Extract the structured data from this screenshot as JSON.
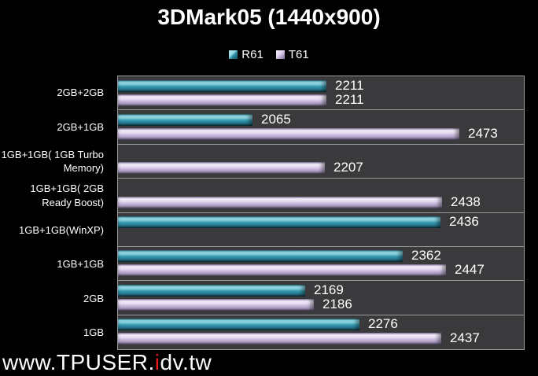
{
  "title": "3DMark05 (1440x900)",
  "watermark": {
    "prefix": "www.TPUSER.",
    "red_letter": "i",
    "suffix": "dv.tw"
  },
  "colors": {
    "background": "#000000",
    "plot_background": "#3a3a3c",
    "separator": "#9b9b9b",
    "r61_bar": "#2E8FA8",
    "t61_bar": "#C9B8DE",
    "text": "#ffffff",
    "watermark_accent": "#e51b1b"
  },
  "chart_data": {
    "type": "bar",
    "orientation": "horizontal",
    "title": "3DMark05 (1440x900)",
    "categories": [
      "2GB+2GB",
      "2GB+1GB",
      "1GB+1GB( 1GB Turbo Memory)",
      "1GB+1GB( 2GB Ready Boost)",
      "1GB+1GB(WinXP)",
      "1GB+1GB",
      "2GB",
      "1GB"
    ],
    "series": [
      {
        "name": "R61",
        "color": "#2E8FA8",
        "values": [
          2211,
          2065,
          null,
          null,
          2436,
          2362,
          2169,
          2276
        ]
      },
      {
        "name": "T61",
        "color": "#C9B8DE",
        "values": [
          2211,
          2473,
          2207,
          2438,
          null,
          2447,
          2186,
          2437
        ]
      }
    ],
    "xlim": [
      1800,
      2600
    ],
    "grid": false,
    "value_labels": true,
    "legend_position": "top"
  }
}
